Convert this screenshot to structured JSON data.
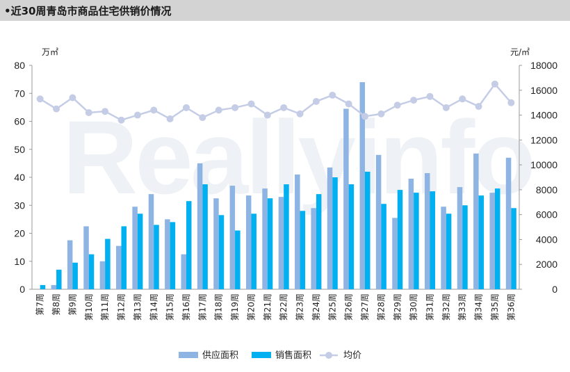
{
  "header": {
    "title": "•近30周青岛市商品住宅供销价情况"
  },
  "watermark": {
    "text": "Reallyinfo"
  },
  "chart_data": {
    "type": "bar",
    "title": "近30周青岛市商品住宅供销价情况",
    "left_unit": "万㎡",
    "right_unit": "元/㎡",
    "ylim_left": [
      0,
      80
    ],
    "left_ticks": [
      0,
      10,
      20,
      30,
      40,
      50,
      60,
      70,
      80
    ],
    "ylim_right": [
      0,
      18000
    ],
    "right_ticks": [
      0,
      2000,
      4000,
      6000,
      8000,
      10000,
      12000,
      14000,
      16000,
      18000
    ],
    "categories": [
      "第7周",
      "第8周",
      "第9周",
      "第10周",
      "第11周",
      "第12周",
      "第13周",
      "第14周",
      "第15周",
      "第16周",
      "第17周",
      "第18周",
      "第19周",
      "第20周",
      "第21周",
      "第22周",
      "第23周",
      "第24周",
      "第25周",
      "第26周",
      "第27周",
      "第28周",
      "第29周",
      "第30周",
      "第31周",
      "第32周",
      "第33周",
      "第34周",
      "第35周",
      "第36周"
    ],
    "series": [
      {
        "name": "供应面积",
        "type": "bar",
        "axis": "left",
        "color": "#8eb4e3",
        "values": [
          0,
          1.5,
          17.5,
          22.5,
          10,
          15.5,
          29.5,
          34,
          25,
          12.5,
          45,
          32.5,
          37,
          33.5,
          36,
          33,
          41,
          29,
          43.5,
          64.5,
          74,
          48,
          25.5,
          39.5,
          41.5,
          29.5,
          36.5,
          48.5,
          34.5,
          47
        ]
      },
      {
        "name": "销售面积",
        "type": "bar",
        "axis": "left",
        "color": "#00b0f0",
        "values": [
          1.5,
          7,
          9.5,
          12.5,
          18,
          22.5,
          27,
          23,
          24,
          31.5,
          37.5,
          26.5,
          21,
          27,
          32.5,
          37.5,
          28,
          34,
          40,
          37.5,
          42,
          30.5,
          35.5,
          34.5,
          35,
          27,
          30,
          33.5,
          36,
          29
        ]
      },
      {
        "name": "均价",
        "type": "line",
        "axis": "right",
        "color": "#c5cde6",
        "values": [
          15300,
          14500,
          15400,
          14200,
          14300,
          13600,
          14000,
          14400,
          13700,
          14600,
          13800,
          14400,
          14600,
          14900,
          14000,
          14600,
          14100,
          15100,
          15600,
          14900,
          13900,
          14100,
          14800,
          15200,
          15500,
          14600,
          15300,
          14700,
          16500,
          15000
        ]
      }
    ],
    "legend_position": "bottom"
  }
}
